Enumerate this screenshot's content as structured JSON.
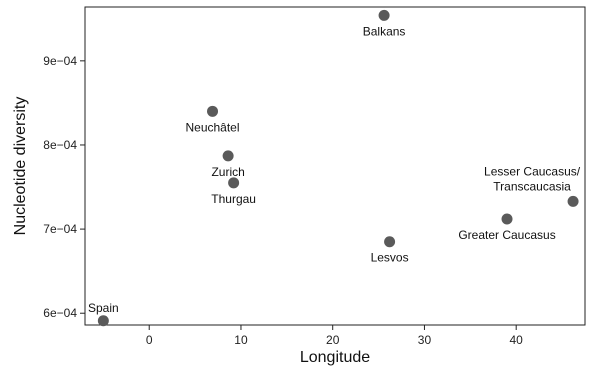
{
  "chart_data": {
    "type": "scatter",
    "xlabel": "Longitude",
    "ylabel": "Nucleotide diversity",
    "xlim": [
      -7,
      47.5
    ],
    "ylim": [
      0.000586,
      0.000964
    ],
    "xticks": [
      0,
      10,
      20,
      30,
      40
    ],
    "yticks": [
      0.0006,
      0.0007,
      0.0008,
      0.0009
    ],
    "xtick_labels": [
      "0",
      "10",
      "20",
      "30",
      "40"
    ],
    "ytick_labels": [
      "6e−04",
      "7e−04",
      "8e−04",
      "9e−04"
    ],
    "grid": false,
    "point_color": "#5a5a5a",
    "points": [
      {
        "label": [
          "Spain"
        ],
        "x": -5.0,
        "y": 0.000591,
        "label_pos": "above"
      },
      {
        "label": [
          "Neuchâtel"
        ],
        "x": 6.9,
        "y": 0.00084,
        "label_pos": "below"
      },
      {
        "label": [
          "Zurich"
        ],
        "x": 8.6,
        "y": 0.000787,
        "label_pos": "below"
      },
      {
        "label": [
          "Thurgau"
        ],
        "x": 9.2,
        "y": 0.000755,
        "label_pos": "below"
      },
      {
        "label": [
          "Balkans"
        ],
        "x": 25.6,
        "y": 0.000954,
        "label_pos": "below"
      },
      {
        "label": [
          "Lesvos"
        ],
        "x": 26.2,
        "y": 0.000685,
        "label_pos": "below"
      },
      {
        "label": [
          "Greater Caucasus"
        ],
        "x": 39.0,
        "y": 0.000712,
        "label_pos": "below"
      },
      {
        "label": [
          "Lesser Caucasus/",
          "Transcaucasia"
        ],
        "x": 46.2,
        "y": 0.000733,
        "label_pos": "above-left"
      }
    ]
  }
}
